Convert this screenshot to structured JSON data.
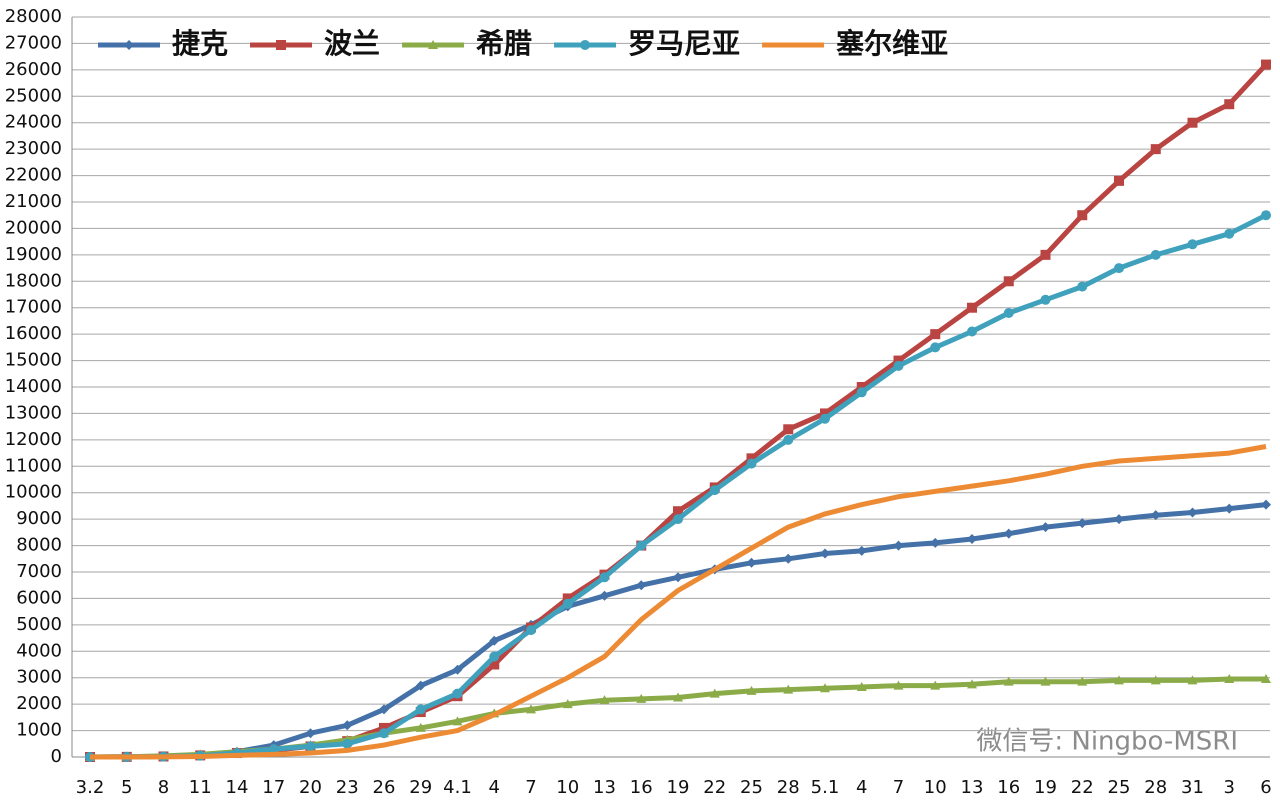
{
  "chart_data": {
    "type": "line",
    "categories": [
      "3.2",
      "5",
      "8",
      "11",
      "14",
      "17",
      "20",
      "23",
      "26",
      "29",
      "4.1",
      "4",
      "7",
      "10",
      "13",
      "16",
      "19",
      "22",
      "25",
      "28",
      "5.1",
      "4",
      "7",
      "10",
      "13",
      "16",
      "19",
      "22",
      "25",
      "28",
      "31",
      "3",
      "6"
    ],
    "series": [
      {
        "name": "捷克",
        "color": "#4472a8",
        "marker": "diamond",
        "values": [
          0,
          10,
          30,
          80,
          200,
          450,
          900,
          1200,
          1800,
          2700,
          3300,
          4400,
          5000,
          5700,
          6100,
          6500,
          6800,
          7100,
          7350,
          7500,
          7700,
          7800,
          8000,
          8100,
          8250,
          8450,
          8700,
          8850,
          9000,
          9150,
          9250,
          9400,
          9550
        ]
      },
      {
        "name": "波兰",
        "color": "#b94441",
        "marker": "square",
        "values": [
          0,
          5,
          20,
          60,
          150,
          250,
          400,
          600,
          1100,
          1700,
          2300,
          3500,
          4900,
          6000,
          6900,
          8000,
          9300,
          10200,
          11300,
          12400,
          13000,
          14000,
          15000,
          16000,
          17000,
          18000,
          19000,
          20500,
          21800,
          23000,
          24000,
          24700,
          26200
        ]
      },
      {
        "name": "希腊",
        "color": "#8aab48",
        "marker": "triangle",
        "values": [
          0,
          10,
          40,
          100,
          200,
          300,
          450,
          650,
          900,
          1100,
          1350,
          1650,
          1800,
          2000,
          2150,
          2200,
          2250,
          2400,
          2500,
          2550,
          2600,
          2650,
          2700,
          2700,
          2750,
          2850,
          2850,
          2850,
          2900,
          2900,
          2900,
          2950,
          2950
        ]
      },
      {
        "name": "罗马尼亚",
        "color": "#3fa1bc",
        "marker": "circle",
        "values": [
          0,
          5,
          15,
          50,
          150,
          300,
          400,
          500,
          900,
          1800,
          2400,
          3800,
          4800,
          5800,
          6800,
          8000,
          9000,
          10100,
          11100,
          12000,
          12800,
          13800,
          14800,
          15500,
          16100,
          16800,
          17300,
          17800,
          18500,
          19000,
          19400,
          19800,
          20500
        ]
      },
      {
        "name": "塞尔维亚",
        "color": "#ed8b35",
        "marker": "none",
        "values": [
          0,
          0,
          5,
          20,
          60,
          100,
          150,
          250,
          450,
          750,
          1000,
          1600,
          2300,
          3000,
          3800,
          5200,
          6300,
          7100,
          7900,
          8700,
          9200,
          9550,
          9850,
          10050,
          10250,
          10450,
          10700,
          11000,
          11200,
          11300,
          11400,
          11500,
          11750
        ]
      }
    ],
    "ylim": [
      0,
      28000
    ],
    "yticks": [
      0,
      1000,
      2000,
      3000,
      4000,
      5000,
      6000,
      7000,
      8000,
      9000,
      10000,
      11000,
      12000,
      13000,
      14000,
      15000,
      16000,
      17000,
      18000,
      19000,
      20000,
      21000,
      22000,
      23000,
      24000,
      25000,
      26000,
      27000,
      28000
    ],
    "grid": true,
    "legend": "top-left",
    "watermark": "微信号: Ningbo-MSRI"
  }
}
